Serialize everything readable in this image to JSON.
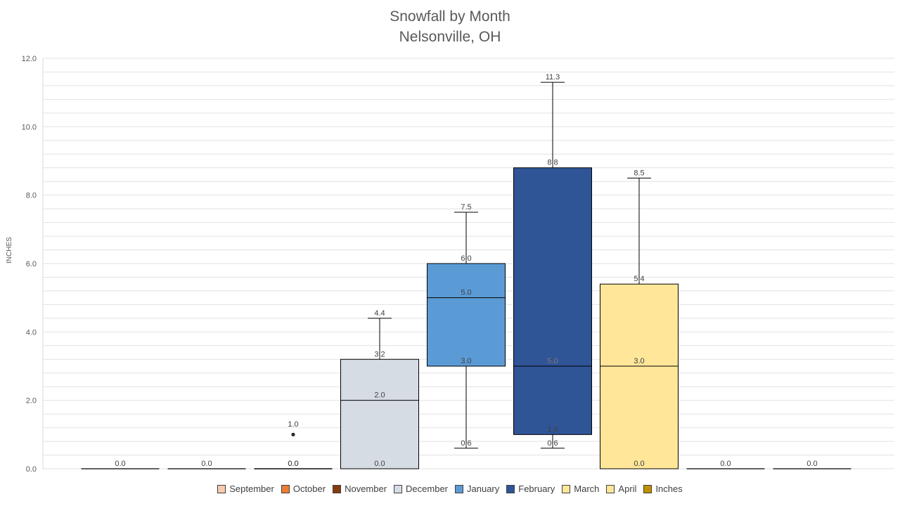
{
  "chart_data": {
    "type": "boxplot",
    "title": "Snowfall by Month",
    "subtitle": "Nelsonville, OH",
    "ylabel": "INCHES",
    "ylim": [
      0,
      12
    ],
    "yticks": [
      "0.0",
      "2.0",
      "4.0",
      "6.0",
      "8.0",
      "10.0",
      "12.0"
    ],
    "grid": true,
    "legend_position": "bottom",
    "legend": [
      {
        "name": "September",
        "color": "#F8CBAD"
      },
      {
        "name": "October",
        "color": "#ED7D31"
      },
      {
        "name": "November",
        "color": "#843C0C"
      },
      {
        "name": "December",
        "color": "#D6DCE4"
      },
      {
        "name": "January",
        "color": "#5B9BD5"
      },
      {
        "name": "February",
        "color": "#2F5597"
      },
      {
        "name": "March",
        "color": "#FFE699"
      },
      {
        "name": "April",
        "color": "#FFE699"
      },
      {
        "name": "Inches",
        "color": "#BF9000"
      }
    ],
    "boxes": [
      {
        "series": "September",
        "min": 0.0,
        "q1": 0.0,
        "median": 0.0,
        "q3": 0.0,
        "max": 0.0,
        "labels": [
          "0.0"
        ],
        "color": "#F8CBAD"
      },
      {
        "series": "October",
        "min": 0.0,
        "q1": 0.0,
        "median": 0.0,
        "q3": 0.0,
        "max": 0.0,
        "labels": [
          "0.0"
        ],
        "color": "#ED7D31"
      },
      {
        "series": "November",
        "min": 0.0,
        "q1": 0.0,
        "median": 0.0,
        "q3": 0.0,
        "max": 0.0,
        "outliers": [
          1.0
        ],
        "labels": [
          "0.0",
          "1.0"
        ],
        "color": "#843C0C"
      },
      {
        "series": "December",
        "min": 0.0,
        "q1": 0.0,
        "median": 2.0,
        "q3": 3.2,
        "max": 4.4,
        "labels": [
          "0.0",
          "2.0",
          "3.2",
          "4.4"
        ],
        "color": "#D6DCE4"
      },
      {
        "series": "January",
        "min": 0.6,
        "q1": 3.0,
        "median": 5.0,
        "q3": 6.0,
        "max": 7.5,
        "labels": [
          "0.6",
          "3.0",
          "5.0",
          "6.0",
          "7.5"
        ],
        "color": "#5B9BD5"
      },
      {
        "series": "February",
        "min": 0.6,
        "q1": 1.0,
        "median": 3.0,
        "q3": 8.8,
        "max": 11.3,
        "labels": [
          "0.6",
          "1.0",
          "3.0",
          "8.8",
          "11.3"
        ],
        "extra_labels": [
          "5.0"
        ],
        "color": "#2F5597"
      },
      {
        "series": "March",
        "min": 0.0,
        "q1": 0.0,
        "median": 3.0,
        "q3": 5.4,
        "max": 8.5,
        "labels": [
          "0.0",
          "3.0",
          "5.4",
          "8.5"
        ],
        "color": "#FFE699"
      },
      {
        "series": "April",
        "min": 0.0,
        "q1": 0.0,
        "median": 0.0,
        "q3": 0.0,
        "max": 0.0,
        "labels": [
          "0.0"
        ],
        "color": "#FFE699"
      },
      {
        "series": "Inches",
        "min": 0.0,
        "q1": 0.0,
        "median": 0.0,
        "q3": 0.0,
        "max": 0.0,
        "labels": [
          "0.0"
        ],
        "color": "#BF9000"
      }
    ]
  }
}
